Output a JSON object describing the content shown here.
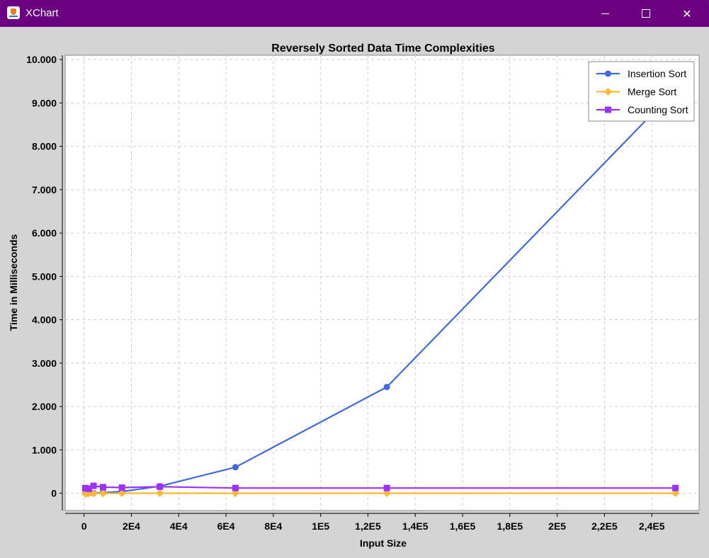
{
  "window": {
    "title": "XChart",
    "icon": "java-cup-icon",
    "controls": [
      "minimize-icon",
      "maximize-icon",
      "close-icon"
    ]
  },
  "colors": {
    "titlebar": "#6b0080",
    "chart_background": "#d4d4d4",
    "plot_background": "#ffffff",
    "insertion": "#4169e1",
    "merge": "#ffb833",
    "counting": "#9b30ff"
  },
  "chart_data": {
    "type": "line",
    "title": "Reversely Sorted Data Time Complexities",
    "xlabel": "Input Size",
    "ylabel": "Time in Milliseconds",
    "xlim": [
      -8000,
      260000
    ],
    "ylim": [
      -400,
      10100
    ],
    "x_ticks": [
      0,
      20000,
      40000,
      60000,
      80000,
      100000,
      120000,
      140000,
      160000,
      180000,
      200000,
      220000,
      240000
    ],
    "x_tick_labels": [
      "0",
      "2E4",
      "4E4",
      "6E4",
      "8E4",
      "1E5",
      "1,2E5",
      "1,4E5",
      "1,6E5",
      "1,8E5",
      "2E5",
      "2,2E5",
      "2,4E5"
    ],
    "y_ticks": [
      0,
      1000,
      2000,
      3000,
      4000,
      5000,
      6000,
      7000,
      8000,
      9000,
      10000
    ],
    "y_tick_labels": [
      "0",
      "1.000",
      "2.000",
      "3.000",
      "4.000",
      "5.000",
      "6.000",
      "7.000",
      "8.000",
      "9.000",
      "10.000"
    ],
    "grid": true,
    "legend_position": "top-right",
    "x": [
      500,
      1000,
      2000,
      4000,
      8000,
      16000,
      32000,
      64000,
      128000,
      250000
    ],
    "series": [
      {
        "name": "Insertion Sort",
        "marker": "circle",
        "color": "#4169e1",
        "values": [
          0,
          0,
          1,
          4,
          12,
          40,
          160,
          600,
          2450,
          9300
        ]
      },
      {
        "name": "Merge Sort",
        "marker": "diamond",
        "color": "#ffb833",
        "values": [
          -10,
          -10,
          -5,
          -5,
          -5,
          0,
          0,
          0,
          0,
          0
        ]
      },
      {
        "name": "Counting Sort",
        "marker": "square",
        "color": "#9b30ff",
        "values": [
          120,
          110,
          100,
          170,
          140,
          130,
          150,
          120,
          120,
          120
        ]
      }
    ]
  }
}
